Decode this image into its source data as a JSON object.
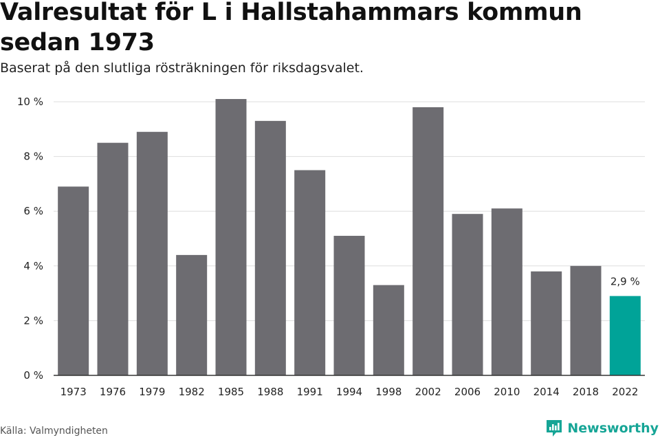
{
  "title": "Valresultat för L i Hallstahammars kommun sedan 1973",
  "subtitle": "Baserat på den slutliga rösträkningen för riksdagsvalet.",
  "source": "Källa: Valmyndigheten",
  "brand": {
    "name": "Newsworthy",
    "icon": "newsworthy-logo-icon"
  },
  "colors": {
    "bar": "#6d6c71",
    "highlight": "#00a398",
    "grid": "#dddddd",
    "axis": "#333333"
  },
  "chart_data": {
    "type": "bar",
    "title": "Valresultat för L i Hallstahammars kommun sedan 1973",
    "subtitle": "Baserat på den slutliga rösträkningen för riksdagsvalet.",
    "categories": [
      "1973",
      "1976",
      "1979",
      "1982",
      "1985",
      "1988",
      "1991",
      "1994",
      "1998",
      "2002",
      "2006",
      "2010",
      "2014",
      "2018",
      "2022"
    ],
    "values": [
      6.9,
      8.5,
      8.9,
      4.4,
      10.1,
      9.3,
      7.5,
      5.1,
      3.3,
      9.8,
      5.9,
      6.1,
      3.8,
      4.0,
      2.9
    ],
    "ylim": [
      0,
      10
    ],
    "yticks": [
      0,
      2,
      4,
      6,
      8,
      10
    ],
    "ytick_labels": [
      "0 %",
      "2 %",
      "4 %",
      "6 %",
      "8 %",
      "10 %"
    ],
    "grid": true,
    "legend": "none",
    "highlight_index": 14,
    "data_labels": [
      {
        "index": 14,
        "text": "2,9 %"
      }
    ]
  }
}
